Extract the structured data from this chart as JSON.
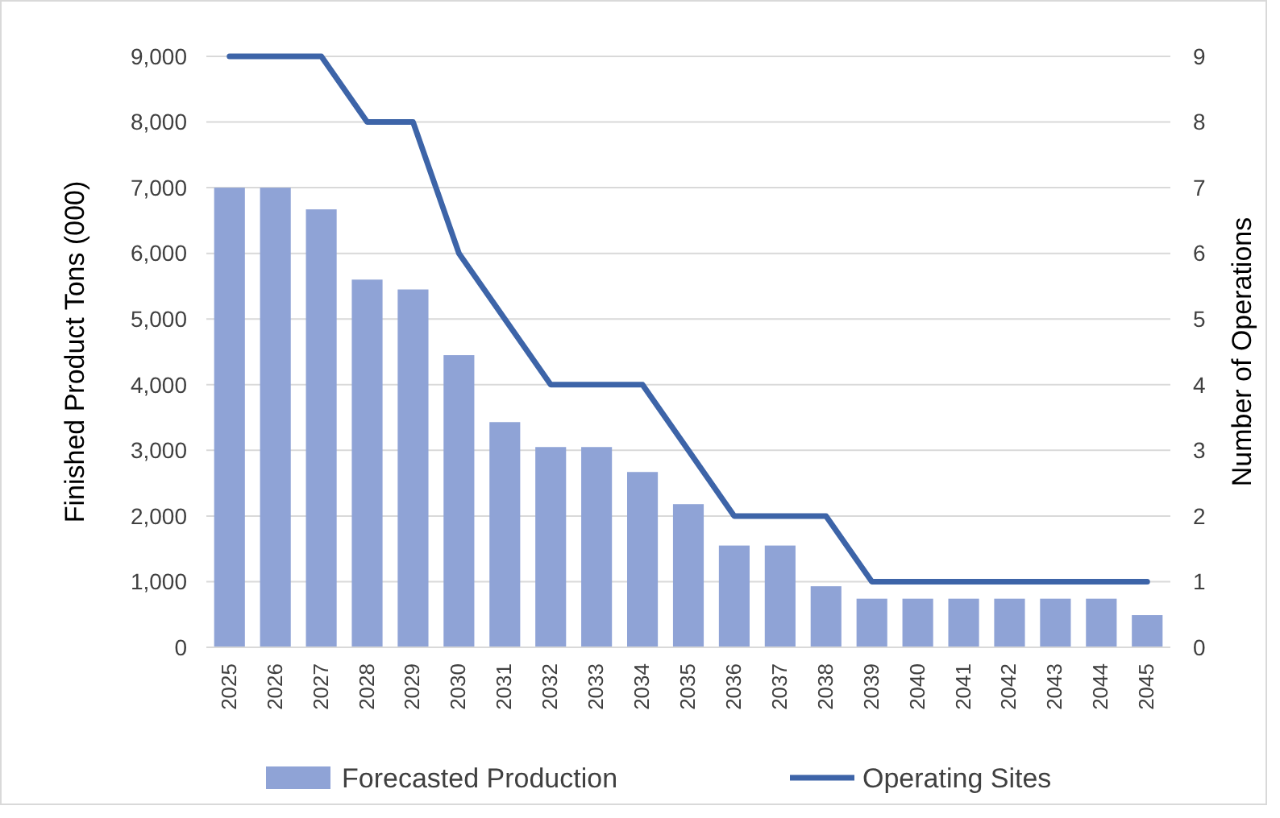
{
  "chart_data": {
    "type": "bar",
    "ylabel": "Finished Product Tons (000)",
    "y2label": "Number of Operations",
    "categories": [
      "2025",
      "2026",
      "2027",
      "2028",
      "2029",
      "2030",
      "2031",
      "2032",
      "2033",
      "2034",
      "2035",
      "2036",
      "2037",
      "2038",
      "2039",
      "2040",
      "2041",
      "2042",
      "2043",
      "2044",
      "2045"
    ],
    "series": [
      {
        "name": "Forecasted Production",
        "color": "#8fa3d6",
        "values": [
          7000,
          7000,
          6670,
          5600,
          5450,
          4450,
          3430,
          3050,
          3050,
          2670,
          2180,
          1550,
          1550,
          930,
          740,
          740,
          740,
          740,
          740,
          740,
          490
        ]
      },
      {
        "name": "Operating Sites",
        "type": "line",
        "axis": "y2",
        "color": "#3d64a8",
        "values": [
          9,
          9,
          9,
          8,
          8,
          6,
          5,
          4,
          4,
          4,
          3,
          2,
          2,
          2,
          1,
          1,
          1,
          1,
          1,
          1,
          1
        ]
      }
    ],
    "ylim": [
      0,
      9000
    ],
    "yticks": [
      {
        "value": 0,
        "label": "0"
      },
      {
        "value": 1000,
        "label": "1,000"
      },
      {
        "value": 2000,
        "label": "2,000"
      },
      {
        "value": 3000,
        "label": "3,000"
      },
      {
        "value": 4000,
        "label": "4,000"
      },
      {
        "value": 5000,
        "label": "5,000"
      },
      {
        "value": 6000,
        "label": "6,000"
      },
      {
        "value": 7000,
        "label": "7,000"
      },
      {
        "value": 8000,
        "label": "8,000"
      },
      {
        "value": 9000,
        "label": "9,000"
      }
    ],
    "y2lim": [
      0,
      9
    ],
    "y2ticks": [
      0,
      1,
      2,
      3,
      4,
      5,
      6,
      7,
      8,
      9
    ],
    "grid": "y",
    "legend": "bottom",
    "marker": "none",
    "line_style": "solid"
  }
}
